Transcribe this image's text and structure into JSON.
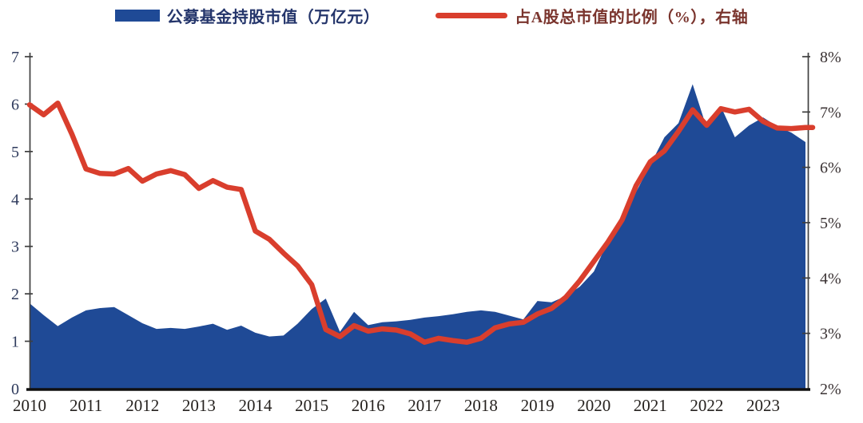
{
  "legend": [
    {
      "label": "公募基金持股市值（万亿元）",
      "type": "area",
      "color": "#1F4A96"
    },
    {
      "label": "占A股总市值的比例（%），右轴",
      "type": "line",
      "color": "#D93E2D"
    }
  ],
  "chart_data": {
    "type": "area+line",
    "title": "",
    "categories": [
      "2010Q1",
      "2010Q2",
      "2010Q3",
      "2010Q4",
      "2011Q1",
      "2011Q2",
      "2011Q3",
      "2011Q4",
      "2012Q1",
      "2012Q2",
      "2012Q3",
      "2012Q4",
      "2013Q1",
      "2013Q2",
      "2013Q3",
      "2013Q4",
      "2014Q1",
      "2014Q2",
      "2014Q3",
      "2014Q4",
      "2015Q1",
      "2015Q2",
      "2015Q3",
      "2015Q4",
      "2016Q1",
      "2016Q2",
      "2016Q3",
      "2016Q4",
      "2017Q1",
      "2017Q2",
      "2017Q3",
      "2017Q4",
      "2018Q1",
      "2018Q2",
      "2018Q3",
      "2018Q4",
      "2019Q1",
      "2019Q2",
      "2019Q3",
      "2019Q4",
      "2020Q1",
      "2020Q2",
      "2020Q3",
      "2020Q4",
      "2021Q1",
      "2021Q2",
      "2021Q3",
      "2021Q4",
      "2022Q1",
      "2022Q2",
      "2022Q3",
      "2022Q4",
      "2023Q1",
      "2023Q2",
      "2023Q3",
      "2023Q4"
    ],
    "x_tick_labels": [
      "2010",
      "2011",
      "2012",
      "2013",
      "2014",
      "2015",
      "2016",
      "2017",
      "2018",
      "2019",
      "2020",
      "2021",
      "2022",
      "2023"
    ],
    "series": [
      {
        "name": "公募基金持股市值（万亿元）",
        "type": "area",
        "axis": "left",
        "color": "#1F4A96",
        "values": [
          1.8,
          1.55,
          1.32,
          1.5,
          1.65,
          1.7,
          1.72,
          1.55,
          1.38,
          1.26,
          1.28,
          1.26,
          1.31,
          1.37,
          1.24,
          1.33,
          1.18,
          1.1,
          1.12,
          1.37,
          1.68,
          1.9,
          1.2,
          1.62,
          1.34,
          1.4,
          1.42,
          1.45,
          1.5,
          1.53,
          1.57,
          1.62,
          1.65,
          1.62,
          1.54,
          1.46,
          1.85,
          1.82,
          1.95,
          2.15,
          2.47,
          3.1,
          3.65,
          4.15,
          4.72,
          5.3,
          5.6,
          6.42,
          5.5,
          5.95,
          5.3,
          5.55,
          5.72,
          5.53,
          5.4,
          5.2
        ]
      },
      {
        "name": "占A股总市值的比例（%），右轴",
        "type": "line",
        "axis": "right",
        "color": "#D93E2D",
        "values": [
          7.13,
          6.95,
          7.16,
          6.6,
          5.97,
          5.89,
          5.88,
          5.98,
          5.75,
          5.88,
          5.94,
          5.87,
          5.62,
          5.76,
          5.64,
          5.6,
          4.85,
          4.7,
          4.45,
          4.22,
          3.88,
          3.07,
          2.94,
          3.14,
          3.04,
          3.08,
          3.06,
          2.99,
          2.84,
          2.91,
          2.87,
          2.84,
          2.91,
          3.1,
          3.17,
          3.2,
          3.35,
          3.45,
          3.65,
          3.95,
          4.3,
          4.65,
          5.05,
          5.67,
          6.1,
          6.3,
          6.65,
          7.04,
          6.76,
          7.06,
          7.0,
          7.05,
          6.83,
          6.71,
          6.7,
          6.72
        ]
      }
    ],
    "left_axis": {
      "min": 0,
      "max": 7,
      "ticks": [
        "0",
        "1",
        "2",
        "3",
        "4",
        "5",
        "6",
        "7"
      ]
    },
    "right_axis": {
      "min": 2,
      "max": 8,
      "ticks": [
        "2%",
        "3%",
        "4%",
        "5%",
        "6%",
        "7%",
        "8%"
      ]
    },
    "grid": "off",
    "legend_position": "top"
  }
}
